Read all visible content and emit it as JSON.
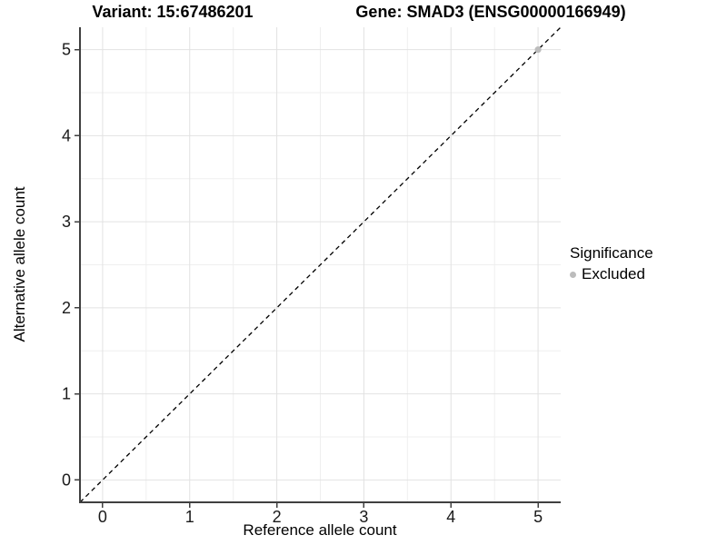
{
  "figure": {
    "title_variant": "Variant: 15:67486201",
    "title_gene": "Gene: SMAD3 (ENSG00000166949)"
  },
  "chart_data": {
    "type": "scatter",
    "title_left": "Variant: 15:67486201",
    "title_right": "Gene: SMAD3 (ENSG00000166949)",
    "xlabel": "Reference allele count",
    "ylabel": "Alternative allele count",
    "xlim": [
      -0.26,
      5.26
    ],
    "ylim": [
      -0.26,
      5.26
    ],
    "x_ticks": [
      0,
      1,
      2,
      3,
      4,
      5
    ],
    "y_ticks": [
      0,
      1,
      2,
      3,
      4,
      5
    ],
    "minor_gridlines": [
      0.5,
      1.5,
      2.5,
      3.5,
      4.5
    ],
    "grid": true,
    "identity_line": {
      "style": "dashed",
      "color": "#000000",
      "from": [
        -0.26,
        -0.26
      ],
      "to": [
        5.26,
        5.26
      ]
    },
    "points": [
      {
        "x": 5,
        "y": 5,
        "series": "Excluded"
      }
    ],
    "legend": {
      "title": "Significance",
      "position": "right",
      "items": [
        {
          "label": "Excluded",
          "color": "#bcbcbc",
          "marker": "circle"
        }
      ]
    },
    "colors": {
      "background": "#ffffff",
      "grid_major": "#e2e2e2",
      "grid_minor": "#efefef",
      "axis_line": "#404040",
      "tick_label": "#1a1a1a",
      "point_excluded": "#bcbcbc"
    }
  }
}
